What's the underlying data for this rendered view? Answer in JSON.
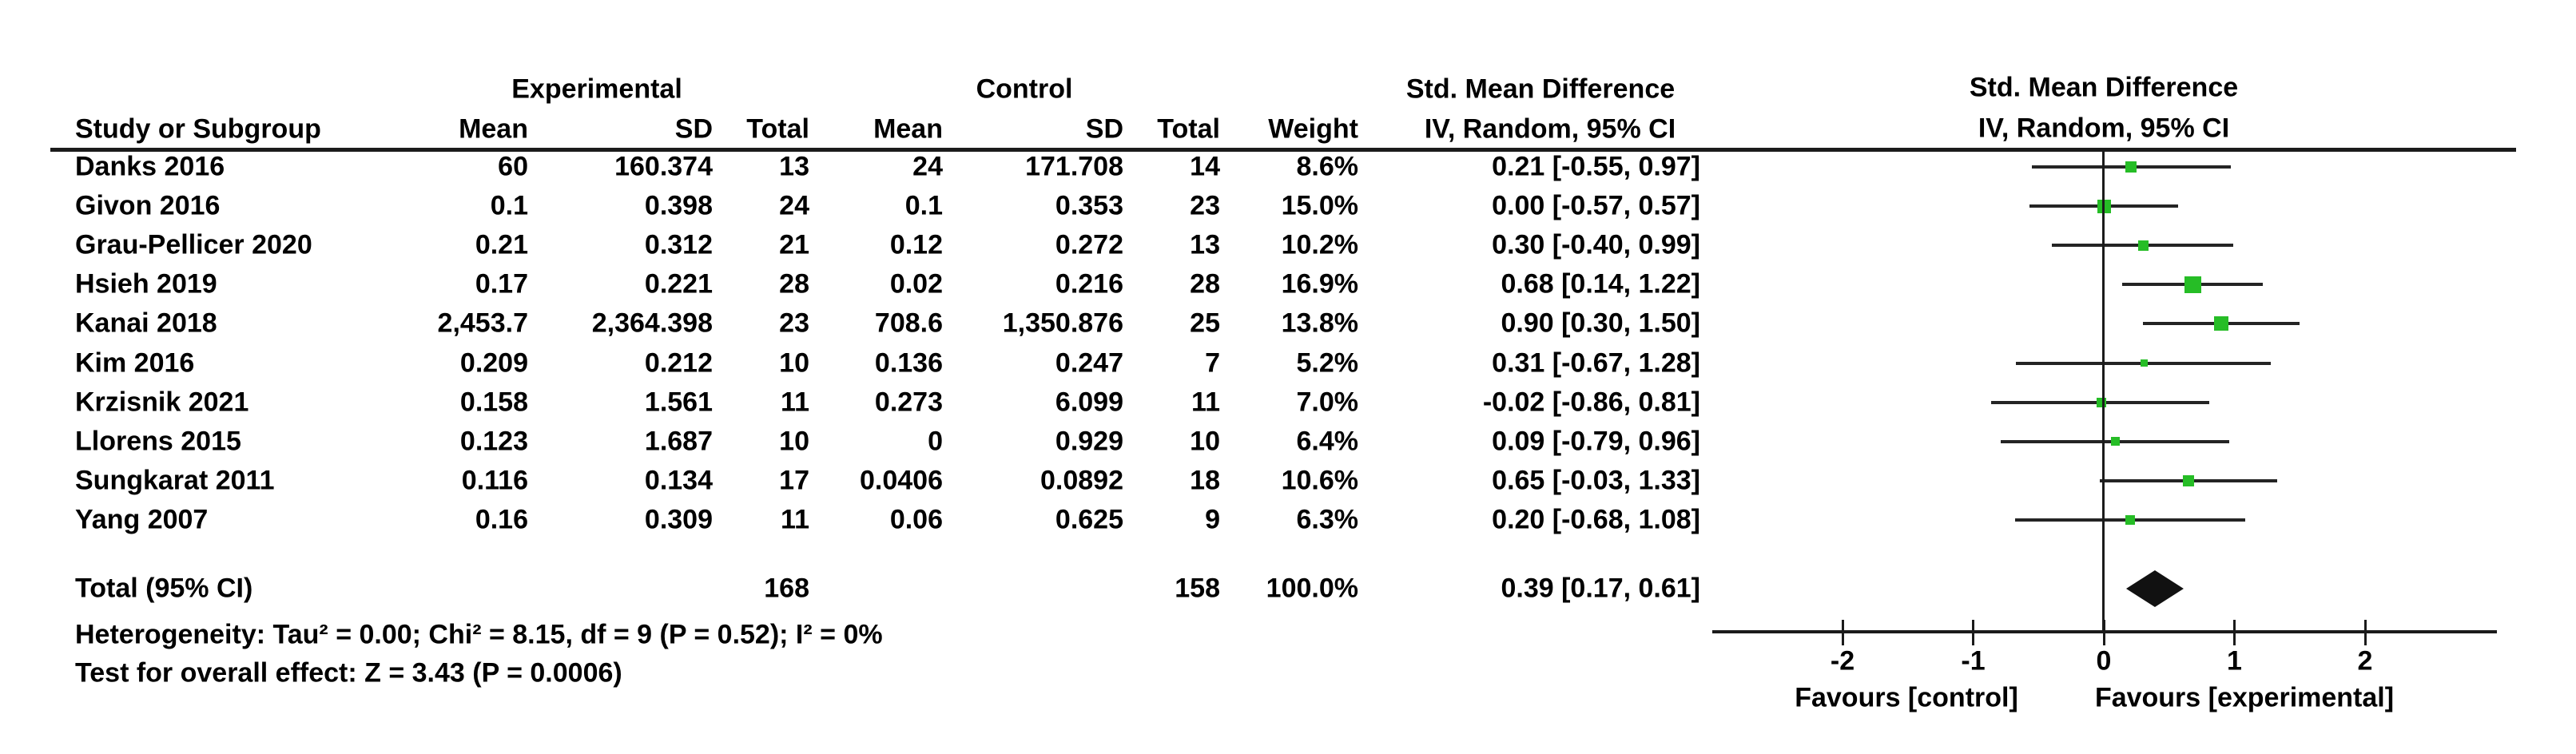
{
  "headers": {
    "group_experimental": "Experimental",
    "group_control": "Control",
    "group_smd_table": "Std. Mean Difference",
    "group_smd_plot": "Std. Mean Difference",
    "col_study": "Study or Subgroup",
    "col_exp_mean": "Mean",
    "col_exp_sd": "SD",
    "col_exp_total": "Total",
    "col_ctl_mean": "Mean",
    "col_ctl_sd": "SD",
    "col_ctl_total": "Total",
    "col_weight": "Weight",
    "col_ci_table": "IV, Random, 95% CI",
    "col_ci_plot": "IV, Random, 95% CI"
  },
  "studies": [
    {
      "name": "Danks 2016",
      "exp_mean": "60",
      "exp_sd": "160.374",
      "exp_total": "13",
      "ctl_mean": "24",
      "ctl_sd": "171.708",
      "ctl_total": "14",
      "weight": "8.6%",
      "ci_text": "0.21 [-0.55, 0.97]",
      "smd": 0.21,
      "low": -0.55,
      "high": 0.97,
      "marker": 14
    },
    {
      "name": "Givon 2016",
      "exp_mean": "0.1",
      "exp_sd": "0.398",
      "exp_total": "24",
      "ctl_mean": "0.1",
      "ctl_sd": "0.353",
      "ctl_total": "23",
      "weight": "15.0%",
      "ci_text": "0.00 [-0.57, 0.57]",
      "smd": 0.0,
      "low": -0.57,
      "high": 0.57,
      "marker": 17
    },
    {
      "name": "Grau-Pellicer 2020",
      "exp_mean": "0.21",
      "exp_sd": "0.312",
      "exp_total": "21",
      "ctl_mean": "0.12",
      "ctl_sd": "0.272",
      "ctl_total": "13",
      "weight": "10.2%",
      "ci_text": "0.30 [-0.40, 0.99]",
      "smd": 0.3,
      "low": -0.4,
      "high": 0.99,
      "marker": 13
    },
    {
      "name": "Hsieh 2019",
      "exp_mean": "0.17",
      "exp_sd": "0.221",
      "exp_total": "28",
      "ctl_mean": "0.02",
      "ctl_sd": "0.216",
      "ctl_total": "28",
      "weight": "16.9%",
      "ci_text": "0.68 [0.14, 1.22]",
      "smd": 0.68,
      "low": 0.14,
      "high": 1.22,
      "marker": 21
    },
    {
      "name": "Kanai 2018",
      "exp_mean": "2,453.7",
      "exp_sd": "2,364.398",
      "exp_total": "23",
      "ctl_mean": "708.6",
      "ctl_sd": "1,350.876",
      "ctl_total": "25",
      "weight": "13.8%",
      "ci_text": "0.90 [0.30, 1.50]",
      "smd": 0.9,
      "low": 0.3,
      "high": 1.5,
      "marker": 18
    },
    {
      "name": "Kim 2016",
      "exp_mean": "0.209",
      "exp_sd": "0.212",
      "exp_total": "10",
      "ctl_mean": "0.136",
      "ctl_sd": "0.247",
      "ctl_total": "7",
      "weight": "5.2%",
      "ci_text": "0.31 [-0.67, 1.28]",
      "smd": 0.31,
      "low": -0.67,
      "high": 1.28,
      "marker": 9
    },
    {
      "name": "Krzisnik 2021",
      "exp_mean": "0.158",
      "exp_sd": "1.561",
      "exp_total": "11",
      "ctl_mean": "0.273",
      "ctl_sd": "6.099",
      "ctl_total": "11",
      "weight": "7.0%",
      "ci_text": "-0.02 [-0.86, 0.81]",
      "smd": -0.02,
      "low": -0.86,
      "high": 0.81,
      "marker": 12
    },
    {
      "name": "Llorens 2015",
      "exp_mean": "0.123",
      "exp_sd": "1.687",
      "exp_total": "10",
      "ctl_mean": "0",
      "ctl_sd": "0.929",
      "ctl_total": "10",
      "weight": "6.4%",
      "ci_text": "0.09 [-0.79, 0.96]",
      "smd": 0.09,
      "low": -0.79,
      "high": 0.96,
      "marker": 11
    },
    {
      "name": "Sungkarat 2011",
      "exp_mean": "0.116",
      "exp_sd": "0.134",
      "exp_total": "17",
      "ctl_mean": "0.0406",
      "ctl_sd": "0.0892",
      "ctl_total": "18",
      "weight": "10.6%",
      "ci_text": "0.65 [-0.03, 1.33]",
      "smd": 0.65,
      "low": -0.03,
      "high": 1.33,
      "marker": 14
    },
    {
      "name": "Yang 2007",
      "exp_mean": "0.16",
      "exp_sd": "0.309",
      "exp_total": "11",
      "ctl_mean": "0.06",
      "ctl_sd": "0.625",
      "ctl_total": "9",
      "weight": "6.3%",
      "ci_text": "0.20 [-0.68, 1.08]",
      "smd": 0.2,
      "low": -0.68,
      "high": 1.08,
      "marker": 12
    }
  ],
  "total": {
    "label": "Total (95% CI)",
    "exp_total": "168",
    "ctl_total": "158",
    "weight": "100.0%",
    "ci_text": "0.39 [0.17, 0.61]",
    "smd": 0.39,
    "low": 0.17,
    "high": 0.61
  },
  "footnotes": {
    "heterogeneity": "Heterogeneity: Tau² = 0.00; Chi² = 8.15, df = 9 (P = 0.52); I² = 0%",
    "overall_effect": "Test for overall effect: Z = 3.43 (P = 0.0006)"
  },
  "axis": {
    "tick_labels": [
      "-2",
      "-1",
      "0",
      "1",
      "2"
    ],
    "tick_values": [
      -2,
      -1,
      0,
      1,
      2
    ],
    "favours_left": "Favours [control]",
    "favours_right": "Favours [experimental]"
  },
  "colors": {
    "marker_green": "#26bd26",
    "line_dark": "#242424",
    "diamond_black": "#111111"
  },
  "chart_data": {
    "type": "forest",
    "title": "Std. Mean Difference",
    "subtitle": "IV, Random, 95% CI",
    "xlabel_left": "Favours [control]",
    "xlabel_right": "Favours [experimental]",
    "x_ticks": [
      -2,
      -1,
      0,
      1,
      2
    ],
    "x_range_visible": [
      -3,
      3
    ],
    "effect_measure": "Std. Mean Difference (IV, Random, 95% CI)",
    "studies": [
      {
        "name": "Danks 2016",
        "smd": 0.21,
        "ci": [
          -0.55,
          0.97
        ],
        "weight_pct": 8.6
      },
      {
        "name": "Givon 2016",
        "smd": 0.0,
        "ci": [
          -0.57,
          0.57
        ],
        "weight_pct": 15.0
      },
      {
        "name": "Grau-Pellicer 2020",
        "smd": 0.3,
        "ci": [
          -0.4,
          0.99
        ],
        "weight_pct": 10.2
      },
      {
        "name": "Hsieh 2019",
        "smd": 0.68,
        "ci": [
          0.14,
          1.22
        ],
        "weight_pct": 16.9
      },
      {
        "name": "Kanai 2018",
        "smd": 0.9,
        "ci": [
          0.3,
          1.5
        ],
        "weight_pct": 13.8
      },
      {
        "name": "Kim 2016",
        "smd": 0.31,
        "ci": [
          -0.67,
          1.28
        ],
        "weight_pct": 5.2
      },
      {
        "name": "Krzisnik 2021",
        "smd": -0.02,
        "ci": [
          -0.86,
          0.81
        ],
        "weight_pct": 7.0
      },
      {
        "name": "Llorens 2015",
        "smd": 0.09,
        "ci": [
          -0.79,
          0.96
        ],
        "weight_pct": 6.4
      },
      {
        "name": "Sungkarat 2011",
        "smd": 0.65,
        "ci": [
          -0.03,
          1.33
        ],
        "weight_pct": 10.6
      },
      {
        "name": "Yang 2007",
        "smd": 0.2,
        "ci": [
          -0.68,
          1.08
        ],
        "weight_pct": 6.3
      }
    ],
    "total": {
      "label": "Total (95% CI)",
      "smd": 0.39,
      "ci": [
        0.17,
        0.61
      ],
      "weight_pct": 100.0,
      "heterogeneity": "Tau² = 0.00; Chi² = 8.15, df = 9 (P = 0.52); I² = 0%",
      "overall_effect": "Z = 3.43 (P = 0.0006)"
    }
  }
}
